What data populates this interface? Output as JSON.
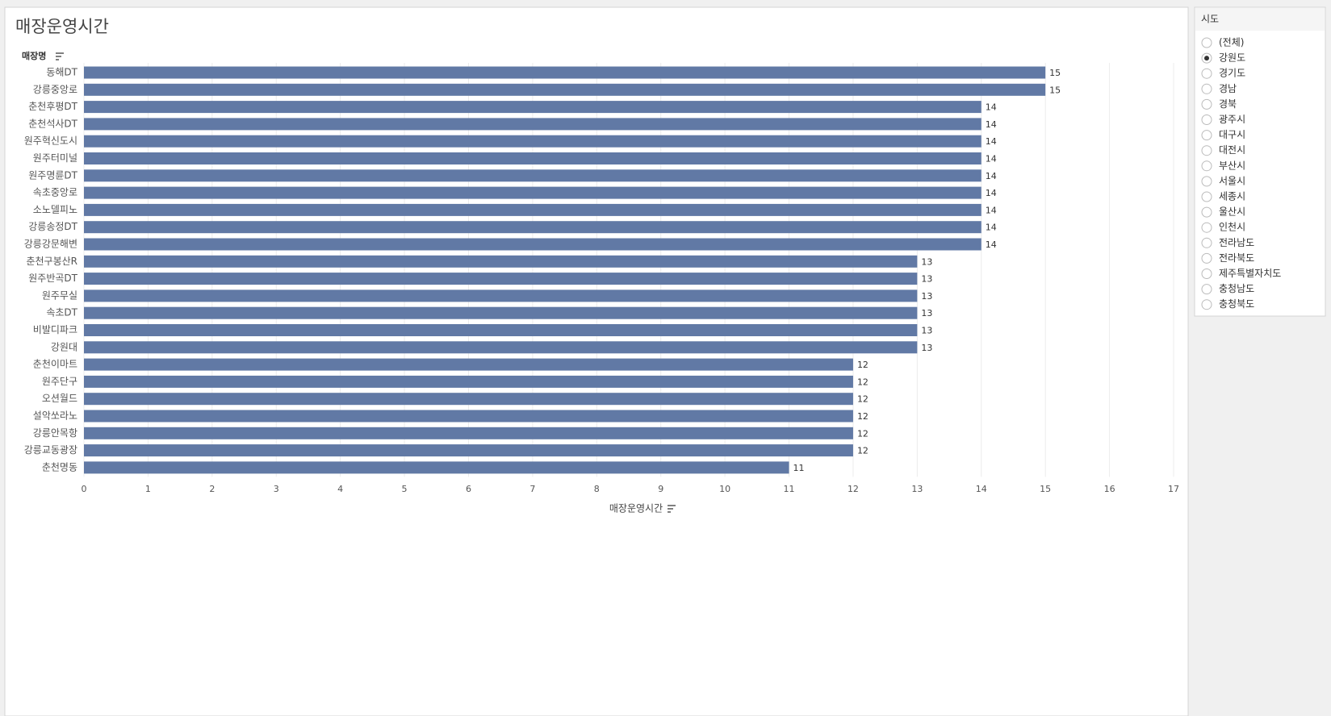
{
  "chart_data": {
    "type": "bar",
    "orientation": "horizontal",
    "title": "매장운영시간",
    "y_label": "매장명",
    "x_label": "매장운영시간",
    "color": "#6179a5",
    "categories": [
      "동해DT",
      "강릉중앙로",
      "춘천후평DT",
      "춘천석사DT",
      "원주혁신도시",
      "원주터미널",
      "원주명륜DT",
      "속초중앙로",
      "소노델피노",
      "강릉송정DT",
      "강릉강문해변",
      "춘천구봉산R",
      "원주반곡DT",
      "원주무실",
      "속초DT",
      "비발디파크",
      "강원대",
      "춘천이마트",
      "원주단구",
      "오션월드",
      "설악쏘라노",
      "강릉안목항",
      "강릉교동광장",
      "춘천명동"
    ],
    "values": [
      15,
      15,
      14,
      14,
      14,
      14,
      14,
      14,
      14,
      14,
      14,
      13,
      13,
      13,
      13,
      13,
      13,
      12,
      12,
      12,
      12,
      12,
      12,
      11
    ],
    "xlim": [
      0,
      17
    ],
    "xticks": [
      0,
      1,
      2,
      3,
      4,
      5,
      6,
      7,
      8,
      9,
      10,
      11,
      12,
      13,
      14,
      15,
      16,
      17
    ],
    "grid": true
  },
  "filter": {
    "title": "시도",
    "options": [
      "(전체)",
      "강원도",
      "경기도",
      "경남",
      "경북",
      "광주시",
      "대구시",
      "대전시",
      "부산시",
      "서울시",
      "세종시",
      "울산시",
      "인천시",
      "전라남도",
      "전라북도",
      "제주특별자치도",
      "충청남도",
      "충청북도"
    ],
    "selected": 1
  }
}
